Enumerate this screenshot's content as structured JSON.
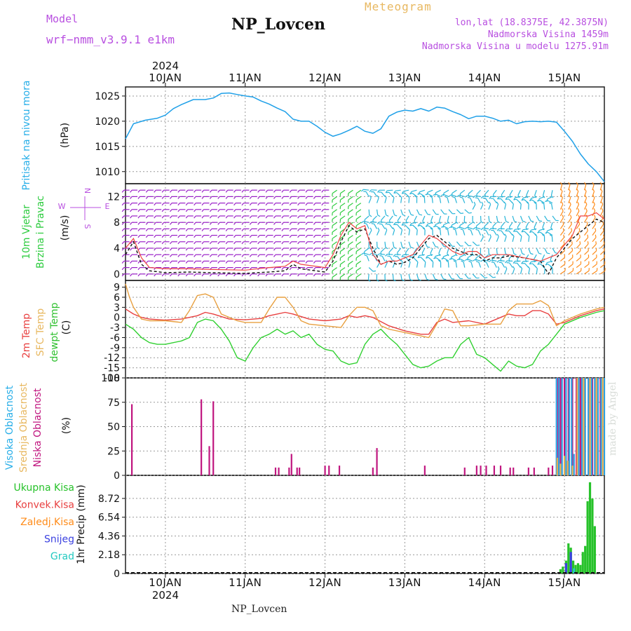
{
  "header": {
    "model_label": "Model",
    "model_name": "wrf−nmm_v3.9.1  e1km",
    "station": "NP_Lovcen",
    "product": "Meteogram",
    "lonlat": "lon,lat (18.8375E, 42.3875N)",
    "altitude": "Nadmorska Visina 1459m",
    "model_altitude": "Nadmorska Visina u modelu 1275.91m",
    "footer_station": "NP_Lovcen",
    "credit": "made by Angel",
    "colors": {
      "purple": "#c050e0",
      "orange": "#e8b860",
      "title": "#111111"
    }
  },
  "time_axis": {
    "year_top": "2024",
    "year_bottom": "2024",
    "day_labels": [
      "10JAN",
      "11JAN",
      "12JAN",
      "13JAN",
      "14JAN",
      "15JAN"
    ],
    "day_values": [
      10,
      11,
      12,
      13,
      14,
      15
    ],
    "range_days": [
      9.5,
      15.5
    ]
  },
  "panel_labels": {
    "pressure": {
      "name": "Pritisak na nivou mora",
      "unit": "(hPa)"
    },
    "wind": {
      "name1": "10m Vjetar",
      "name2": "Brzina i Pravac",
      "unit": "(m/s)",
      "compass": {
        "n": "N",
        "s": "S",
        "e": "E",
        "w": "W"
      }
    },
    "temp": {
      "l1": "2m Temp",
      "l2": "SFC Temp",
      "l3": "dewpt Temp",
      "unit": "(C)"
    },
    "cloud": {
      "l1": "Visoka Oblacnost",
      "l2": "Srednja Oblacnost",
      "l3": "Niska Oblacnost",
      "unit": "(%)"
    },
    "precip": {
      "legend": [
        "Ukupna Kisa",
        "Konvek.Kisa",
        "Zaledj.Kisa",
        "Snijeg",
        "Grad"
      ],
      "unit": "1hr Precip (mm)"
    }
  },
  "chart_data": [
    {
      "type": "line",
      "name": "pressure",
      "ylabel": "Pritisak na nivou mora (hPa)",
      "ylim": [
        1007.6,
        1026.8
      ],
      "yticks": [
        1010,
        1015,
        1020,
        1025
      ],
      "color": "#1fa0e8",
      "grid": true,
      "series": [
        {
          "name": "Pritisak na nivou mora",
          "x": [
            9.5,
            9.6,
            9.75,
            9.9,
            10.0,
            10.1,
            10.2,
            10.35,
            10.5,
            10.6,
            10.7,
            10.8,
            10.9,
            11.0,
            11.1,
            11.2,
            11.3,
            11.4,
            11.5,
            11.6,
            11.7,
            11.8,
            11.9,
            12.0,
            12.1,
            12.2,
            12.3,
            12.4,
            12.5,
            12.6,
            12.7,
            12.8,
            12.9,
            13.0,
            13.1,
            13.2,
            13.3,
            13.4,
            13.5,
            13.6,
            13.7,
            13.8,
            13.9,
            14.0,
            14.1,
            14.2,
            14.3,
            14.4,
            14.5,
            14.6,
            14.7,
            14.8,
            14.9,
            15.0,
            15.1,
            15.2,
            15.3,
            15.4,
            15.5
          ],
          "values": [
            1016.5,
            1019.5,
            1020.2,
            1020.6,
            1021.2,
            1022.5,
            1023.3,
            1024.3,
            1024.3,
            1024.6,
            1025.5,
            1025.6,
            1025.3,
            1025.0,
            1024.8,
            1024.0,
            1023.4,
            1022.6,
            1021.9,
            1020.4,
            1020.0,
            1020.0,
            1019.0,
            1017.8,
            1017.0,
            1017.5,
            1018.2,
            1019.0,
            1018.0,
            1017.6,
            1018.5,
            1021.0,
            1021.8,
            1022.2,
            1022.0,
            1022.5,
            1022.0,
            1022.8,
            1022.6,
            1021.9,
            1021.3,
            1020.5,
            1021.0,
            1021.0,
            1020.6,
            1020.0,
            1020.2,
            1019.5,
            1019.9,
            1020.0,
            1019.9,
            1020.0,
            1019.8,
            1018.0,
            1016.0,
            1013.5,
            1011.5,
            1010.0,
            1008.0
          ]
        }
      ]
    },
    {
      "type": "line",
      "name": "wind",
      "ylabel": "10m Vjetar Brzina i Pravac (m/s)",
      "ylim": [
        -1,
        14
      ],
      "yticks": [
        0,
        4,
        8,
        12
      ],
      "grid": true,
      "series": [
        {
          "name": "speed",
          "color": "#111111",
          "x": [
            9.5,
            9.6,
            9.7,
            9.8,
            10.0,
            10.3,
            10.6,
            11.0,
            11.3,
            11.5,
            11.6,
            11.7,
            12.0,
            12.1,
            12.2,
            12.3,
            12.4,
            12.5,
            12.6,
            12.7,
            12.8,
            12.9,
            13.0,
            13.1,
            13.2,
            13.3,
            13.4,
            13.5,
            13.6,
            13.7,
            13.8,
            13.9,
            14.0,
            14.1,
            14.2,
            14.3,
            14.5,
            14.7,
            14.8,
            14.9,
            15.0,
            15.1,
            15.2,
            15.3,
            15.4,
            15.5
          ],
          "values": [
            3.0,
            5.0,
            1.5,
            0.5,
            0.2,
            0.3,
            0.2,
            0.1,
            0.3,
            0.5,
            1.5,
            0.8,
            0.3,
            2.0,
            5.0,
            7.5,
            6.5,
            7.0,
            4.0,
            1.5,
            2.0,
            1.5,
            1.8,
            2.5,
            4.0,
            5.5,
            6.0,
            5.0,
            4.0,
            3.5,
            3.0,
            3.0,
            2.0,
            2.5,
            2.5,
            2.8,
            2.5,
            2.0,
            0.0,
            2.5,
            4.0,
            5.5,
            6.5,
            7.5,
            8.5,
            8.0
          ]
        },
        {
          "name": "gust",
          "color": "#ee4444",
          "x": [
            9.5,
            9.6,
            9.7,
            9.8,
            10.0,
            10.3,
            10.6,
            11.0,
            11.3,
            11.5,
            11.6,
            11.7,
            12.0,
            12.1,
            12.2,
            12.3,
            12.4,
            12.5,
            12.6,
            12.7,
            12.8,
            12.9,
            13.0,
            13.1,
            13.2,
            13.3,
            13.4,
            13.5,
            13.6,
            13.7,
            13.8,
            13.9,
            14.0,
            14.1,
            14.2,
            14.3,
            14.5,
            14.7,
            14.8,
            14.9,
            15.0,
            15.1,
            15.2,
            15.3,
            15.4,
            15.5
          ],
          "values": [
            4.0,
            5.5,
            2.5,
            1.0,
            0.8,
            0.8,
            0.7,
            0.6,
            1.0,
            1.2,
            2.0,
            1.5,
            1.0,
            3.0,
            6.0,
            8.0,
            7.0,
            7.5,
            3.0,
            1.5,
            2.0,
            2.0,
            2.5,
            3.0,
            4.5,
            6.0,
            5.5,
            4.5,
            3.5,
            3.0,
            3.5,
            3.5,
            2.5,
            3.0,
            3.0,
            3.0,
            2.5,
            2.0,
            2.5,
            3.0,
            4.5,
            6.0,
            9.0,
            9.0,
            9.5,
            8.5
          ]
        }
      ],
      "barbs": {
        "levels": [
          0,
          1,
          2,
          3,
          4,
          5,
          6,
          7,
          8,
          9,
          10,
          11,
          12,
          13
        ],
        "x_start": 9.55,
        "x_end": 15.45,
        "x_step": 0.1,
        "regimes": [
          {
            "x_range": [
              9.5,
              12.05
            ],
            "direction": "E",
            "color": "#9a1fc8"
          },
          {
            "x_range": [
              12.05,
              12.5
            ],
            "direction": "NE",
            "color": "#2ecc40"
          },
          {
            "x_range": [
              12.5,
              14.9
            ],
            "direction": "variable",
            "color": "#27b5d9"
          },
          {
            "x_range": [
              14.9,
              15.5
            ],
            "direction": "SW",
            "color": "#ff8c1a"
          }
        ]
      }
    },
    {
      "type": "line",
      "name": "temperature",
      "ylabel": "(C)",
      "ylim": [
        -18,
        11
      ],
      "yticks": [
        -18,
        -15,
        -12,
        -9,
        -6,
        -3,
        0,
        3,
        6,
        9
      ],
      "grid": true,
      "series": [
        {
          "name": "2m Temp",
          "color": "#e84040",
          "x": [
            9.5,
            9.6,
            9.7,
            9.8,
            10.0,
            10.2,
            10.3,
            10.4,
            10.5,
            10.6,
            10.8,
            11.0,
            11.2,
            11.3,
            11.4,
            11.5,
            11.6,
            11.8,
            12.0,
            12.2,
            12.3,
            12.4,
            12.5,
            12.6,
            12.8,
            13.0,
            13.2,
            13.3,
            13.4,
            13.5,
            13.6,
            13.8,
            14.0,
            14.2,
            14.3,
            14.4,
            14.5,
            14.6,
            14.7,
            14.8,
            14.9,
            15.0,
            15.2,
            15.4,
            15.5
          ],
          "values": [
            2.5,
            1.0,
            0.0,
            -0.5,
            -0.8,
            -0.5,
            0.0,
            0.5,
            1.5,
            1.0,
            -0.5,
            -0.7,
            -0.3,
            0.5,
            1.0,
            1.5,
            1.0,
            -0.5,
            -1.0,
            -0.5,
            0.5,
            0.0,
            0.5,
            0.0,
            -2.5,
            -4.0,
            -5.0,
            -5.0,
            -1.5,
            -0.5,
            -1.5,
            -1.0,
            -2.0,
            0.0,
            1.0,
            0.5,
            0.5,
            2.0,
            2.0,
            1.0,
            -2.0,
            -1.5,
            0.5,
            2.0,
            2.5
          ]
        },
        {
          "name": "SFC Temp",
          "color": "#e8a040",
          "x": [
            9.5,
            9.55,
            9.6,
            9.7,
            9.8,
            10.0,
            10.2,
            10.3,
            10.4,
            10.5,
            10.6,
            10.7,
            10.9,
            11.0,
            11.2,
            11.3,
            11.4,
            11.5,
            11.6,
            11.7,
            11.8,
            12.0,
            12.2,
            12.3,
            12.4,
            12.5,
            12.6,
            12.7,
            12.8,
            13.0,
            13.2,
            13.3,
            13.4,
            13.5,
            13.6,
            13.7,
            13.8,
            14.0,
            14.2,
            14.3,
            14.4,
            14.5,
            14.6,
            14.7,
            14.8,
            14.9,
            15.0,
            15.2,
            15.4,
            15.5
          ],
          "values": [
            10.0,
            6.0,
            3.0,
            -0.5,
            -1.0,
            -1.0,
            -1.5,
            2.0,
            6.5,
            7.0,
            6.0,
            1.0,
            -1.0,
            -1.5,
            -1.5,
            2.5,
            6.0,
            6.0,
            3.0,
            -1.0,
            -2.0,
            -2.5,
            -3.0,
            0.5,
            3.0,
            3.0,
            2.0,
            -2.5,
            -3.5,
            -4.5,
            -5.5,
            -6.0,
            -2.0,
            2.5,
            2.0,
            -2.5,
            -2.5,
            -2.0,
            -2.0,
            2.0,
            4.0,
            4.0,
            4.0,
            5.0,
            3.5,
            -2.5,
            -1.0,
            1.0,
            2.5,
            3.0
          ]
        },
        {
          "name": "dewpt Temp",
          "color": "#30d030",
          "x": [
            9.5,
            9.6,
            9.7,
            9.8,
            9.9,
            10.0,
            10.2,
            10.3,
            10.4,
            10.5,
            10.6,
            10.7,
            10.8,
            10.9,
            11.0,
            11.1,
            11.2,
            11.3,
            11.4,
            11.5,
            11.6,
            11.7,
            11.8,
            11.9,
            12.0,
            12.1,
            12.2,
            12.3,
            12.4,
            12.5,
            12.6,
            12.7,
            12.8,
            12.9,
            13.0,
            13.1,
            13.2,
            13.3,
            13.4,
            13.5,
            13.6,
            13.7,
            13.8,
            13.9,
            14.0,
            14.1,
            14.2,
            14.3,
            14.4,
            14.5,
            14.6,
            14.7,
            14.8,
            14.9,
            15.0,
            15.2,
            15.4,
            15.5
          ],
          "values": [
            -2.0,
            -3.5,
            -6.0,
            -7.5,
            -8.0,
            -8.0,
            -7.0,
            -6.0,
            -1.5,
            -0.5,
            -1.0,
            -3.5,
            -7.0,
            -12.0,
            -13.0,
            -9.0,
            -6.0,
            -5.0,
            -3.5,
            -5.0,
            -4.0,
            -6.0,
            -5.0,
            -8.0,
            -9.5,
            -10.0,
            -13.0,
            -14.0,
            -13.5,
            -8.0,
            -5.0,
            -3.5,
            -6.0,
            -8.0,
            -11.0,
            -14.0,
            -15.0,
            -14.5,
            -13.0,
            -12.0,
            -12.0,
            -8.0,
            -6.0,
            -11.0,
            -12.0,
            -14.0,
            -16.0,
            -13.0,
            -14.5,
            -15.0,
            -14.0,
            -10.0,
            -8.0,
            -5.0,
            -2.0,
            0.0,
            1.5,
            2.0
          ]
        }
      ]
    },
    {
      "type": "bar",
      "name": "cloud",
      "ylabel": "(%)",
      "ylim": [
        0,
        100
      ],
      "yticks": [
        0,
        25,
        50,
        75,
        100
      ],
      "grid": true,
      "series": [
        {
          "name": "Niska Oblacnost",
          "color": "#c0167f",
          "x": [
            9.58,
            10.45,
            10.55,
            10.6,
            11.38,
            11.42,
            11.55,
            11.58,
            11.65,
            11.68,
            12.0,
            12.05,
            12.18,
            12.6,
            12.65,
            13.25,
            13.75,
            13.9,
            13.95,
            14.02,
            14.12,
            14.2,
            14.32,
            14.36,
            14.55,
            14.62,
            14.8,
            14.85,
            14.92,
            14.95,
            15.0,
            15.05,
            15.1,
            15.15,
            15.2,
            15.25,
            15.3,
            15.35,
            15.4,
            15.45
          ],
          "values": [
            73,
            78,
            30,
            76,
            8,
            8,
            8,
            22,
            8,
            8,
            10,
            10,
            10,
            8,
            28,
            10,
            8,
            10,
            10,
            10,
            10,
            10,
            8,
            8,
            8,
            8,
            8,
            10,
            100,
            100,
            100,
            100,
            100,
            100,
            100,
            100,
            100,
            100,
            100,
            100
          ]
        },
        {
          "name": "Visoka Oblacnost",
          "color": "#2ea0e0",
          "x": [
            14.9,
            14.93,
            14.97,
            15.02,
            15.06,
            15.09,
            15.12,
            15.18,
            15.22,
            15.26,
            15.3,
            15.34,
            15.38,
            15.42,
            15.46,
            15.5
          ],
          "values": [
            100,
            100,
            100,
            100,
            100,
            100,
            22,
            100,
            100,
            100,
            100,
            100,
            100,
            100,
            100,
            100
          ]
        },
        {
          "name": "Srednja Oblacnost",
          "color": "#e8b050",
          "x": [
            14.91,
            14.95,
            15.0,
            15.04,
            15.1,
            15.16,
            15.24,
            15.32,
            15.4,
            15.48
          ],
          "values": [
            18,
            12,
            20,
            15,
            10,
            100,
            100,
            100,
            100,
            100
          ]
        }
      ]
    },
    {
      "type": "bar",
      "name": "precip",
      "ylabel": "1hr Precip (mm)",
      "ylim": [
        0,
        11.4
      ],
      "yticks": [
        0,
        2.18,
        4.36,
        6.54,
        8.72
      ],
      "grid": true,
      "series": [
        {
          "name": "Ukupna Kisa",
          "color": "#27c22a",
          "x": [
            14.95,
            14.98,
            15.02,
            15.05,
            15.08,
            15.11,
            15.14,
            15.17,
            15.2,
            15.23,
            15.26,
            15.29,
            15.32,
            15.35,
            15.38,
            15.41,
            15.44,
            15.47,
            15.5
          ],
          "values": [
            0.5,
            0.8,
            1.5,
            3.5,
            3.0,
            1.5,
            1.0,
            1.2,
            1.0,
            2.5,
            3.2,
            8.4,
            10.6,
            8.7,
            5.5,
            0.0,
            0.0,
            0.0,
            0.0
          ]
        },
        {
          "name": "Snijeg",
          "color": "#3a40e0",
          "x": [
            15.02,
            15.08
          ],
          "values": [
            1.2,
            2.5
          ]
        },
        {
          "name": "Grad",
          "color": "#22c9c0",
          "x": [
            15.12
          ],
          "values": [
            0.6
          ]
        }
      ]
    }
  ]
}
